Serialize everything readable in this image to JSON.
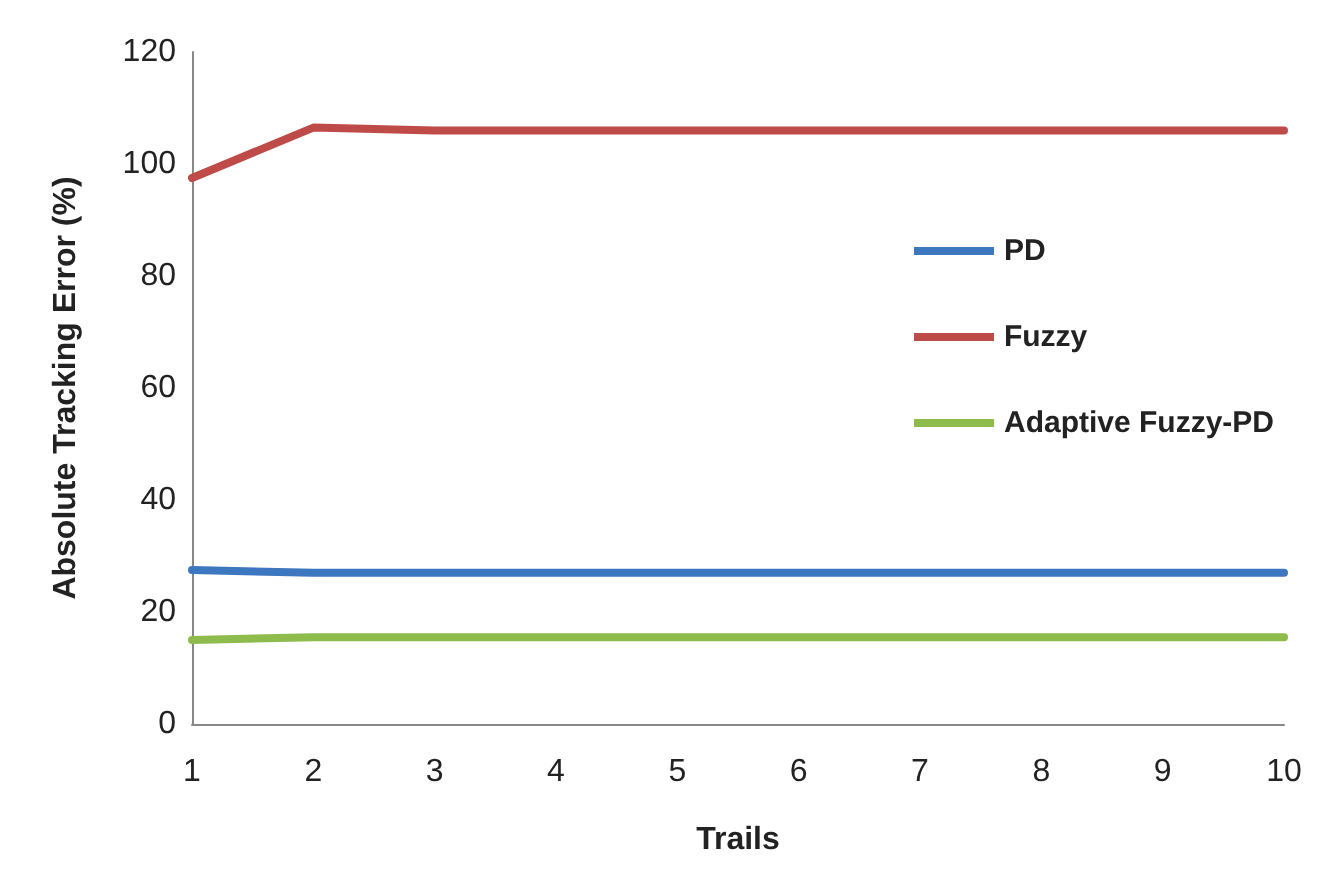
{
  "chart_data": {
    "type": "line",
    "xlabel": "Trails",
    "ylabel": "Absolute Tracking Error (%)",
    "categories": [
      "1",
      "2",
      "3",
      "4",
      "5",
      "6",
      "7",
      "8",
      "9",
      "10"
    ],
    "series": [
      {
        "name": "PD",
        "color": "#3d77c0",
        "values": [
          27.5,
          27,
          27,
          27,
          27,
          27,
          27,
          27,
          27,
          27
        ]
      },
      {
        "name": "Fuzzy",
        "color": "#be4b48",
        "values": [
          97.5,
          106.5,
          106,
          106,
          106,
          106,
          106,
          106,
          106,
          106
        ]
      },
      {
        "name": "Adaptive Fuzzy-PD",
        "color": "#8dbb4c",
        "values": [
          15,
          15.5,
          15.5,
          15.5,
          15.5,
          15.5,
          15.5,
          15.5,
          15.5,
          15.5
        ]
      }
    ],
    "ylim": [
      0,
      120
    ],
    "yticks": [
      0,
      20,
      40,
      60,
      80,
      100,
      120
    ],
    "grid": false,
    "legend": "right",
    "marker": "none",
    "line_style": "solid"
  }
}
